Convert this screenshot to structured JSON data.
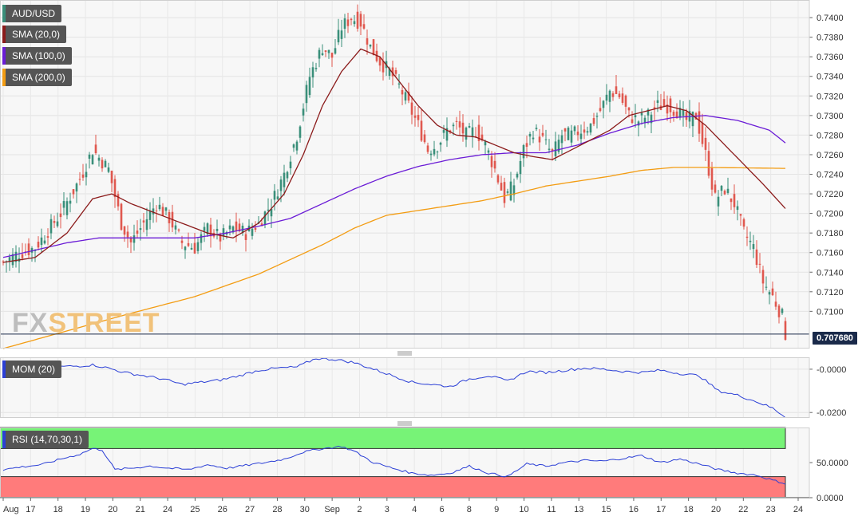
{
  "chart_data": [
    {
      "type": "candlestick",
      "instrument": "AUD/USD",
      "indicators": [
        {
          "name": "SMA (20,0)",
          "color": "#8b1a1a"
        },
        {
          "name": "SMA (100,0)",
          "color": "#6a1bd6"
        },
        {
          "name": "SMA (200,0)",
          "color": "#f39c12"
        }
      ],
      "ylim": [
        0.7062,
        0.7418
      ],
      "y_ticks": [
        "0.7100",
        "0.7120",
        "0.7140",
        "0.7160",
        "0.7180",
        "0.7200",
        "0.7220",
        "0.7240",
        "0.7260",
        "0.7280",
        "0.7300",
        "0.7320",
        "0.7340",
        "0.7360",
        "0.7380",
        "0.7400"
      ],
      "last_price": "0.707680",
      "up_color": "#3a8f7a",
      "down_color": "#e0584f",
      "close_path": [
        [
          0,
          0.715
        ],
        [
          4,
          0.7158
        ],
        [
          10,
          0.7165
        ],
        [
          18,
          0.72
        ],
        [
          24,
          0.7235
        ],
        [
          28,
          0.7265
        ],
        [
          33,
          0.7245
        ],
        [
          37,
          0.719
        ],
        [
          40,
          0.717
        ],
        [
          44,
          0.719
        ],
        [
          48,
          0.721
        ],
        [
          52,
          0.7195
        ],
        [
          56,
          0.717
        ],
        [
          60,
          0.7165
        ],
        [
          64,
          0.7185
        ],
        [
          68,
          0.7175
        ],
        [
          72,
          0.7185
        ],
        [
          76,
          0.718
        ],
        [
          80,
          0.719
        ],
        [
          84,
          0.721
        ],
        [
          88,
          0.724
        ],
        [
          92,
          0.728
        ],
        [
          96,
          0.734
        ],
        [
          100,
          0.737
        ],
        [
          103,
          0.736
        ],
        [
          106,
          0.739
        ],
        [
          109,
          0.74
        ],
        [
          112,
          0.7395
        ],
        [
          115,
          0.737
        ],
        [
          118,
          0.7355
        ],
        [
          121,
          0.7345
        ],
        [
          124,
          0.733
        ],
        [
          127,
          0.731
        ],
        [
          130,
          0.729
        ],
        [
          133,
          0.7265
        ],
        [
          136,
          0.727
        ],
        [
          139,
          0.7285
        ],
        [
          142,
          0.729
        ],
        [
          145,
          0.728
        ],
        [
          148,
          0.7285
        ],
        [
          151,
          0.727
        ],
        [
          154,
          0.7245
        ],
        [
          157,
          0.7215
        ],
        [
          160,
          0.723
        ],
        [
          163,
          0.7265
        ],
        [
          166,
          0.7285
        ],
        [
          169,
          0.7275
        ],
        [
          172,
          0.726
        ],
        [
          175,
          0.728
        ],
        [
          178,
          0.728
        ],
        [
          181,
          0.7285
        ],
        [
          184,
          0.729
        ],
        [
          187,
          0.7305
        ],
        [
          190,
          0.7325
        ],
        [
          193,
          0.732
        ],
        [
          196,
          0.73
        ],
        [
          199,
          0.7295
        ],
        [
          202,
          0.73
        ],
        [
          205,
          0.731
        ],
        [
          208,
          0.731
        ],
        [
          211,
          0.7305
        ],
        [
          214,
          0.7295
        ],
        [
          217,
          0.73
        ],
        [
          220,
          0.726
        ],
        [
          223,
          0.7215
        ],
        [
          226,
          0.7225
        ],
        [
          229,
          0.721
        ],
        [
          232,
          0.718
        ],
        [
          235,
          0.7165
        ],
        [
          238,
          0.713
        ],
        [
          241,
          0.7115
        ],
        [
          244,
          0.7095
        ],
        [
          245,
          0.7077
        ]
      ],
      "sma20_path": [
        [
          0,
          0.715
        ],
        [
          10,
          0.7155
        ],
        [
          20,
          0.718
        ],
        [
          28,
          0.7215
        ],
        [
          34,
          0.722
        ],
        [
          40,
          0.721
        ],
        [
          48,
          0.72
        ],
        [
          56,
          0.719
        ],
        [
          64,
          0.718
        ],
        [
          72,
          0.7175
        ],
        [
          80,
          0.719
        ],
        [
          88,
          0.722
        ],
        [
          94,
          0.726
        ],
        [
          100,
          0.731
        ],
        [
          106,
          0.7345
        ],
        [
          112,
          0.7368
        ],
        [
          118,
          0.736
        ],
        [
          124,
          0.7335
        ],
        [
          130,
          0.731
        ],
        [
          136,
          0.729
        ],
        [
          142,
          0.728
        ],
        [
          148,
          0.7278
        ],
        [
          154,
          0.727
        ],
        [
          160,
          0.7262
        ],
        [
          166,
          0.7258
        ],
        [
          172,
          0.7255
        ],
        [
          178,
          0.7265
        ],
        [
          184,
          0.7275
        ],
        [
          190,
          0.7285
        ],
        [
          196,
          0.73
        ],
        [
          202,
          0.7305
        ],
        [
          208,
          0.731
        ],
        [
          214,
          0.7305
        ],
        [
          220,
          0.729
        ],
        [
          226,
          0.727
        ],
        [
          232,
          0.725
        ],
        [
          238,
          0.723
        ],
        [
          245,
          0.7205
        ]
      ],
      "sma100_path": [
        [
          0,
          0.7155
        ],
        [
          20,
          0.717
        ],
        [
          30,
          0.7175
        ],
        [
          40,
          0.7175
        ],
        [
          50,
          0.7175
        ],
        [
          60,
          0.7175
        ],
        [
          70,
          0.718
        ],
        [
          80,
          0.7187
        ],
        [
          90,
          0.7195
        ],
        [
          100,
          0.721
        ],
        [
          110,
          0.7225
        ],
        [
          120,
          0.7238
        ],
        [
          130,
          0.7248
        ],
        [
          140,
          0.7255
        ],
        [
          150,
          0.726
        ],
        [
          160,
          0.7262
        ],
        [
          170,
          0.7262
        ],
        [
          180,
          0.727
        ],
        [
          190,
          0.7282
        ],
        [
          200,
          0.7292
        ],
        [
          210,
          0.7298
        ],
        [
          220,
          0.73
        ],
        [
          230,
          0.7295
        ],
        [
          240,
          0.7285
        ],
        [
          245,
          0.7272
        ]
      ],
      "sma200_path": [
        [
          0,
          0.7062
        ],
        [
          20,
          0.708
        ],
        [
          40,
          0.7098
        ],
        [
          60,
          0.7115
        ],
        [
          80,
          0.7138
        ],
        [
          100,
          0.7168
        ],
        [
          110,
          0.7185
        ],
        [
          120,
          0.7198
        ],
        [
          130,
          0.7203
        ],
        [
          140,
          0.7208
        ],
        [
          150,
          0.7213
        ],
        [
          160,
          0.722
        ],
        [
          170,
          0.7228
        ],
        [
          180,
          0.7233
        ],
        [
          190,
          0.7238
        ],
        [
          200,
          0.7244
        ],
        [
          210,
          0.7247
        ],
        [
          220,
          0.7247
        ],
        [
          245,
          0.7246
        ]
      ]
    },
    {
      "type": "line",
      "name": "MOM (20)",
      "ylim": [
        -0.0225,
        0.0055
      ],
      "y_ticks": [
        "-0.0000",
        "-0.0200"
      ],
      "line_color": "#2b3fd6",
      "path": [
        [
          0,
          -0.0015
        ],
        [
          6,
          -0.002
        ],
        [
          12,
          0.0005
        ],
        [
          18,
          0.0012
        ],
        [
          24,
          0.0015
        ],
        [
          28,
          0.002
        ],
        [
          33,
          0.0005
        ],
        [
          38,
          -0.0015
        ],
        [
          44,
          -0.003
        ],
        [
          50,
          -0.0045
        ],
        [
          56,
          -0.007
        ],
        [
          62,
          -0.006
        ],
        [
          68,
          -0.005
        ],
        [
          74,
          -0.003
        ],
        [
          80,
          -0.0005
        ],
        [
          86,
          0.0005
        ],
        [
          92,
          0.001
        ],
        [
          98,
          0.005
        ],
        [
          104,
          0.0045
        ],
        [
          110,
          0.003
        ],
        [
          116,
          0.0
        ],
        [
          122,
          -0.003
        ],
        [
          128,
          -0.006
        ],
        [
          134,
          -0.007
        ],
        [
          140,
          -0.008
        ],
        [
          146,
          -0.0045
        ],
        [
          152,
          -0.003
        ],
        [
          158,
          -0.0055
        ],
        [
          164,
          -0.001
        ],
        [
          170,
          -0.0015
        ],
        [
          176,
          -0.0005
        ],
        [
          182,
          0.0005
        ],
        [
          188,
          0.0
        ],
        [
          194,
          -0.001
        ],
        [
          200,
          -0.0015
        ],
        [
          206,
          -0.0005
        ],
        [
          212,
          -0.002
        ],
        [
          218,
          -0.003
        ],
        [
          224,
          -0.01
        ],
        [
          230,
          -0.012
        ],
        [
          236,
          -0.015
        ],
        [
          241,
          -0.018
        ],
        [
          245,
          -0.022
        ]
      ]
    },
    {
      "type": "line",
      "name": "RSI (14,70,30,1)",
      "ylim": [
        0,
        100
      ],
      "y_ticks": [
        "50.0000",
        "0.0000"
      ],
      "overbought": 70,
      "oversold": 30,
      "overbought_color": "#77f377",
      "oversold_color": "#ff7b7b",
      "line_color": "#2b3fd6",
      "path": [
        [
          0,
          40
        ],
        [
          6,
          44
        ],
        [
          12,
          47
        ],
        [
          18,
          55
        ],
        [
          24,
          62
        ],
        [
          28,
          70
        ],
        [
          31,
          68
        ],
        [
          35,
          40
        ],
        [
          40,
          42
        ],
        [
          46,
          45
        ],
        [
          52,
          42
        ],
        [
          58,
          40
        ],
        [
          64,
          47
        ],
        [
          70,
          42
        ],
        [
          76,
          46
        ],
        [
          82,
          50
        ],
        [
          88,
          55
        ],
        [
          94,
          65
        ],
        [
          100,
          70
        ],
        [
          106,
          73
        ],
        [
          110,
          66
        ],
        [
          116,
          50
        ],
        [
          122,
          42
        ],
        [
          128,
          35
        ],
        [
          134,
          32
        ],
        [
          140,
          35
        ],
        [
          146,
          45
        ],
        [
          152,
          35
        ],
        [
          158,
          30
        ],
        [
          164,
          48
        ],
        [
          170,
          45
        ],
        [
          176,
          50
        ],
        [
          182,
          53
        ],
        [
          188,
          52
        ],
        [
          194,
          56
        ],
        [
          200,
          60
        ],
        [
          206,
          50
        ],
        [
          212,
          55
        ],
        [
          218,
          48
        ],
        [
          224,
          40
        ],
        [
          230,
          35
        ],
        [
          236,
          32
        ],
        [
          241,
          25
        ],
        [
          245,
          20
        ]
      ]
    }
  ],
  "x_labels": [
    "Aug",
    "17",
    "18",
    "19",
    "20",
    "21",
    "24",
    "25",
    "26",
    "27",
    "28",
    "30",
    "Sep",
    "2",
    "3",
    "4",
    "6",
    "8",
    "9",
    "10",
    "11",
    "13",
    "15",
    "16",
    "17",
    "18",
    "20",
    "22",
    "23",
    "24"
  ],
  "bar_count": 246
}
